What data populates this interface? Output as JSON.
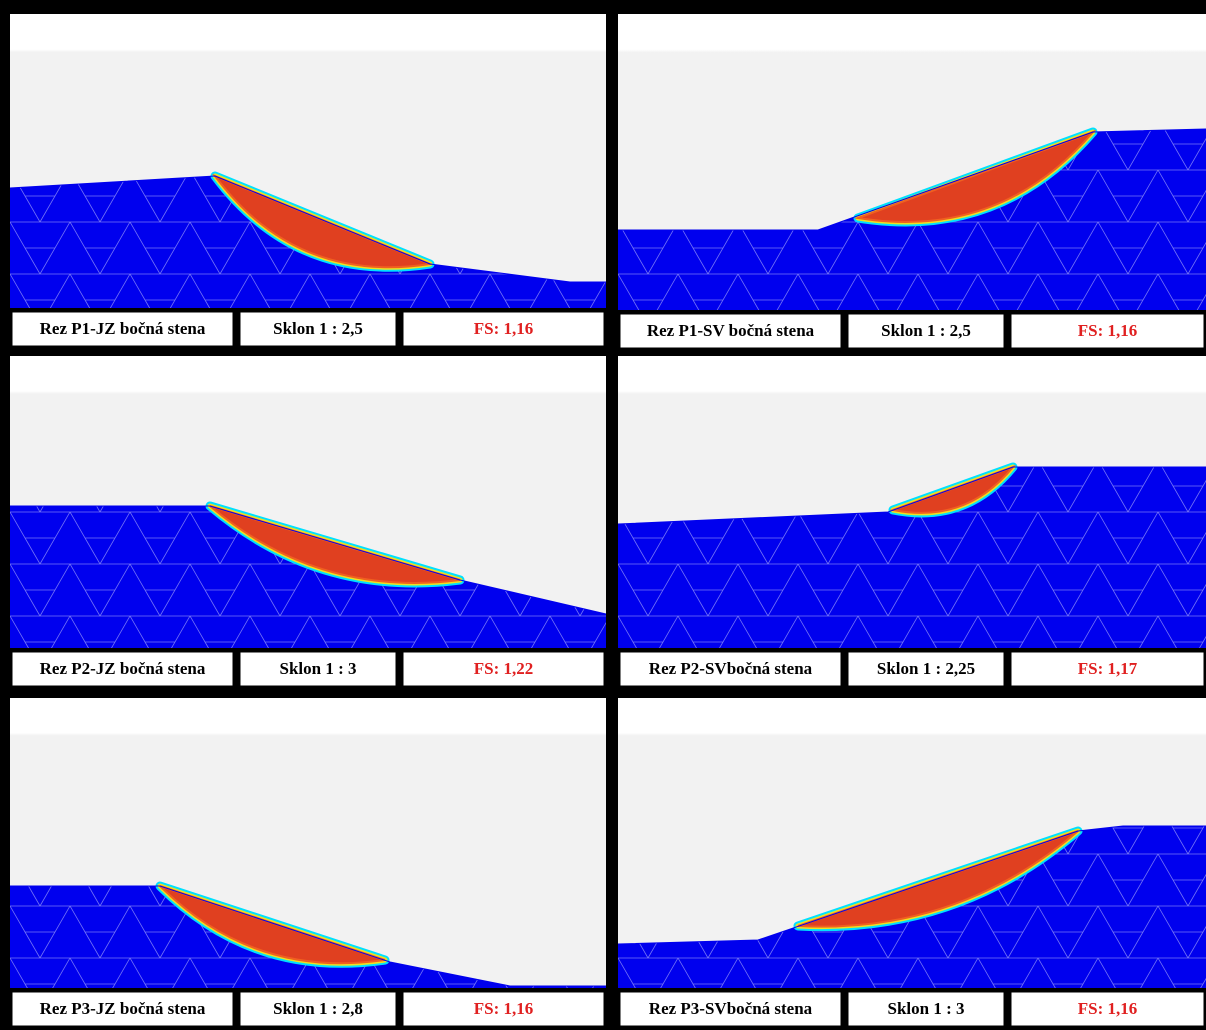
{
  "panels": [
    {
      "section": "Rez P1-JZ bočná stena",
      "slope": "Sklon 1 : 2,5",
      "fs": "FS: 1,16"
    },
    {
      "section": "Rez P1-SV bočná stena",
      "slope": "Sklon 1 : 2,5",
      "fs": "FS: 1,16"
    },
    {
      "section": "Rez P2-JZ bočná stena",
      "slope": "Sklon 1 :  3",
      "fs": "FS: 1,22"
    },
    {
      "section": "Rez P2-SVbočná stena",
      "slope": "Sklon 1 : 2,25",
      "fs": "FS: 1,17"
    },
    {
      "section": "Rez P3-JZ bočná stena",
      "slope": "Sklon 1 : 2,8",
      "fs": "FS: 1,16"
    },
    {
      "section": "Rez P3-SVbočná stena",
      "slope": "Sklon 1 :  3",
      "fs": "FS: 1,16"
    }
  ]
}
